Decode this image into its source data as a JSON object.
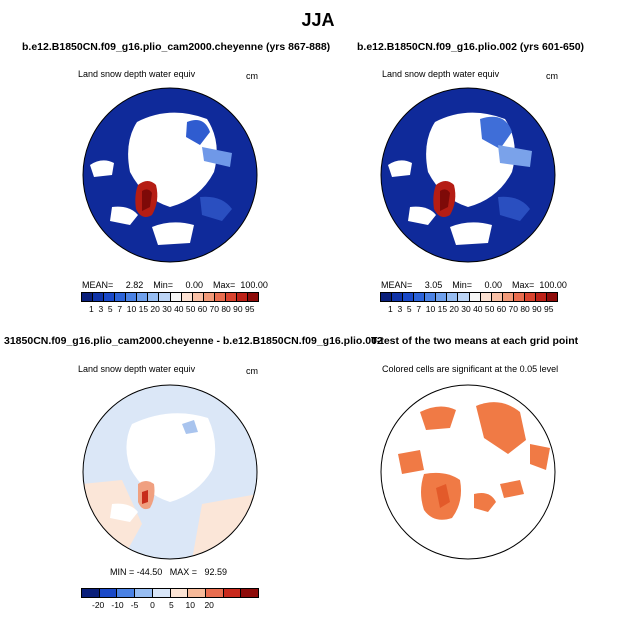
{
  "title": "JJA",
  "panels": [
    {
      "title": "b.e12.B1850CN.f09_g16.plio_cam2000.cheyenne (yrs 867-888)",
      "variable": "Land snow depth water equiv",
      "units": "cm",
      "stats_text": "MEAN=     2.82    Min=     0.00    Max=  100.00",
      "colorbar_labels": "1  3  5  7  10 15 20 30 40 50 60 70 80 90 95"
    },
    {
      "title": "b.e12.B1850CN.f09_g16.plio.002 (yrs 601-650)",
      "variable": "Land snow depth water equiv",
      "units": "cm",
      "stats_text": "MEAN=     3.05    Min=     0.00    Max=  100.00",
      "colorbar_labels": "1  3  5  7  10 15 20 30 40 50 60 70 80 90 95"
    },
    {
      "title": "31850CN.f09_g16.plio_cam2000.cheyenne - b.e12.B1850CN.f09_g16.plio.002",
      "variable": "Land snow depth water equiv",
      "units": "cm",
      "stats_text": "MIN = -44.50   MAX =   92.59",
      "colorbar_labels": "-20   -10   -5     0      5     10    20"
    },
    {
      "title": "T-test of the two means at each grid point",
      "subtitle": "Colored cells are significant at the 0.05 level"
    }
  ],
  "colors": {
    "abs_scale": [
      "#0a1f7a",
      "#0f33a8",
      "#1a49c8",
      "#2c63d8",
      "#4b82e4",
      "#6fa0ec",
      "#97bdf2",
      "#bdd5f6",
      "#f6f6f6",
      "#fce1d2",
      "#f9c0a6",
      "#f29a79",
      "#e96d4f",
      "#d9432e",
      "#bd2117",
      "#8e0c0a"
    ],
    "diff_scale": [
      "#0a1f7a",
      "#1a49c8",
      "#4b82e4",
      "#97bdf2",
      "#d9e6f8",
      "#fbe3d4",
      "#f6b999",
      "#e96d4f",
      "#c92a1d",
      "#8e0c0a"
    ],
    "significant": "#f07a45"
  }
}
